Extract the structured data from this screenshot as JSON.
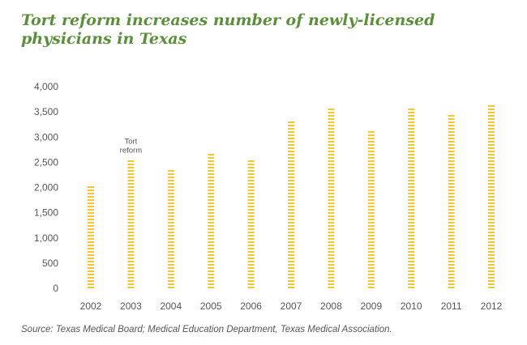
{
  "title": "Tort reform increases number of newly-licensed physicians in Texas",
  "source": "Source: Texas Medical Board; Medical Education Department, Texas Medical Association.",
  "colors": {
    "bar": "#f2c82f",
    "title": "#5a8f3a",
    "text": "#555555"
  },
  "chart_data": {
    "type": "bar",
    "title": "Tort reform increases number of newly-licensed physicians in Texas",
    "xlabel": "",
    "ylabel": "",
    "ylim": [
      0,
      4000
    ],
    "yticks": [
      "0",
      "500",
      "1,000",
      "1,500",
      "2,000",
      "2,500",
      "3,000",
      "3,500",
      "4,000"
    ],
    "ytick_values": [
      0,
      500,
      1000,
      1500,
      2000,
      2500,
      3000,
      3500,
      4000
    ],
    "grid": false,
    "legend": "none",
    "categories": [
      "2002",
      "2003",
      "2004",
      "2005",
      "2006",
      "2007",
      "2008",
      "2009",
      "2010",
      "2011",
      "2012"
    ],
    "values": [
      2080,
      2560,
      2340,
      2720,
      2580,
      3320,
      3620,
      3140,
      3600,
      3450,
      3660
    ],
    "annotations": [
      {
        "category": "2003",
        "lines": [
          "Tort",
          "reform"
        ]
      }
    ]
  }
}
